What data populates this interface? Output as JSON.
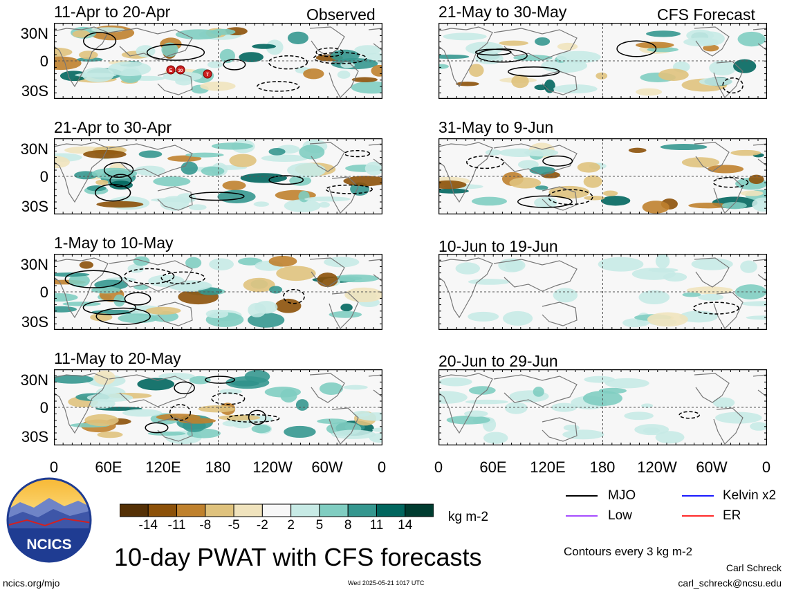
{
  "column_titles": {
    "observed": "Observed",
    "forecast": "CFS Forecast"
  },
  "panels": {
    "observed": [
      {
        "title": "11-Apr to 20-Apr",
        "storm_markers": [
          "E",
          "30",
          "T"
        ]
      },
      {
        "title": "21-Apr to 30-Apr"
      },
      {
        "title": "1-May to 10-May"
      },
      {
        "title": "11-May to 20-May"
      }
    ],
    "forecast": [
      {
        "title": "21-May to 30-May"
      },
      {
        "title": "31-May to 9-Jun"
      },
      {
        "title": "10-Jun to 19-Jun"
      },
      {
        "title": "20-Jun to 29-Jun"
      }
    ]
  },
  "latitude_labels": [
    "30N",
    "0",
    "30S"
  ],
  "longitude_labels": [
    "0",
    "60E",
    "120E",
    "180",
    "120W",
    "60W",
    "0"
  ],
  "colorbar": {
    "colors": [
      "#543005",
      "#8c5109",
      "#bf812d",
      "#dfc27d",
      "#f0e3bd",
      "#f7f7f7",
      "#c7eae5",
      "#80cdc1",
      "#35978f",
      "#01665e",
      "#003c30"
    ],
    "tick_labels": [
      "-14",
      "-11",
      "-8",
      "-5",
      "-2",
      "2",
      "5",
      "8",
      "11",
      "14"
    ],
    "units": "kg m-2"
  },
  "legend": {
    "items": [
      {
        "label": "MJO",
        "color": "#000000"
      },
      {
        "label": "Kelvin x2",
        "color": "#1a1aff"
      },
      {
        "label": "Low",
        "color": "#a64dff"
      },
      {
        "label": "ER",
        "color": "#ff2a2a"
      }
    ],
    "contour_note": "Contours every 3 kg m-2"
  },
  "title": "10-day PWAT with CFS forecasts",
  "logo_text": "NCICS",
  "footer": {
    "url": "ncics.org/mjo",
    "timestamp": "Wed 2025-05-21 1017 UTC",
    "author": "Carl Schreck",
    "email": "carl_schreck@ncsu.edu"
  }
}
